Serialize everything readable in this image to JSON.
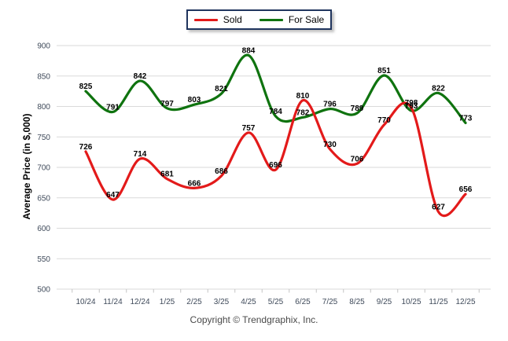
{
  "legend": {
    "items": [
      {
        "label": "Sold"
      },
      {
        "label": "For Sale"
      }
    ]
  },
  "footer": {
    "copyright": "Copyright © Trendgraphix, Inc."
  },
  "chart_data": {
    "type": "line",
    "title": "",
    "categories": [
      "10/24",
      "11/24",
      "12/24",
      "1/25",
      "2/25",
      "3/25",
      "4/25",
      "5/25",
      "6/25",
      "7/25",
      "8/25",
      "9/25",
      "10/25",
      "11/25",
      "12/25"
    ],
    "series": [
      {
        "name": "Sold",
        "color": "#e31a1a",
        "values": [
          726,
          647,
          714,
          681,
          666,
          686,
          757,
          696,
          810,
          730,
          706,
          770,
          798,
          627,
          656
        ]
      },
      {
        "name": "For Sale",
        "color": "#0f730f",
        "values": [
          825,
          791,
          842,
          797,
          803,
          821,
          884,
          784,
          782,
          796,
          789,
          851,
          793,
          822,
          773
        ]
      }
    ],
    "xlabel": "",
    "ylabel": "Average Price (in $,000)",
    "ylim": [
      500,
      900
    ],
    "ytick_step": 50,
    "yticks": [
      500,
      550,
      600,
      650,
      700,
      750,
      800,
      850,
      900
    ],
    "grid": "horizontal",
    "legend_position": "top-center",
    "colors": {
      "grid_line": "#dadada",
      "axis_tick": "#c4c4c4",
      "tick_text": "#3f4a5a",
      "data_label": "#000000"
    }
  }
}
